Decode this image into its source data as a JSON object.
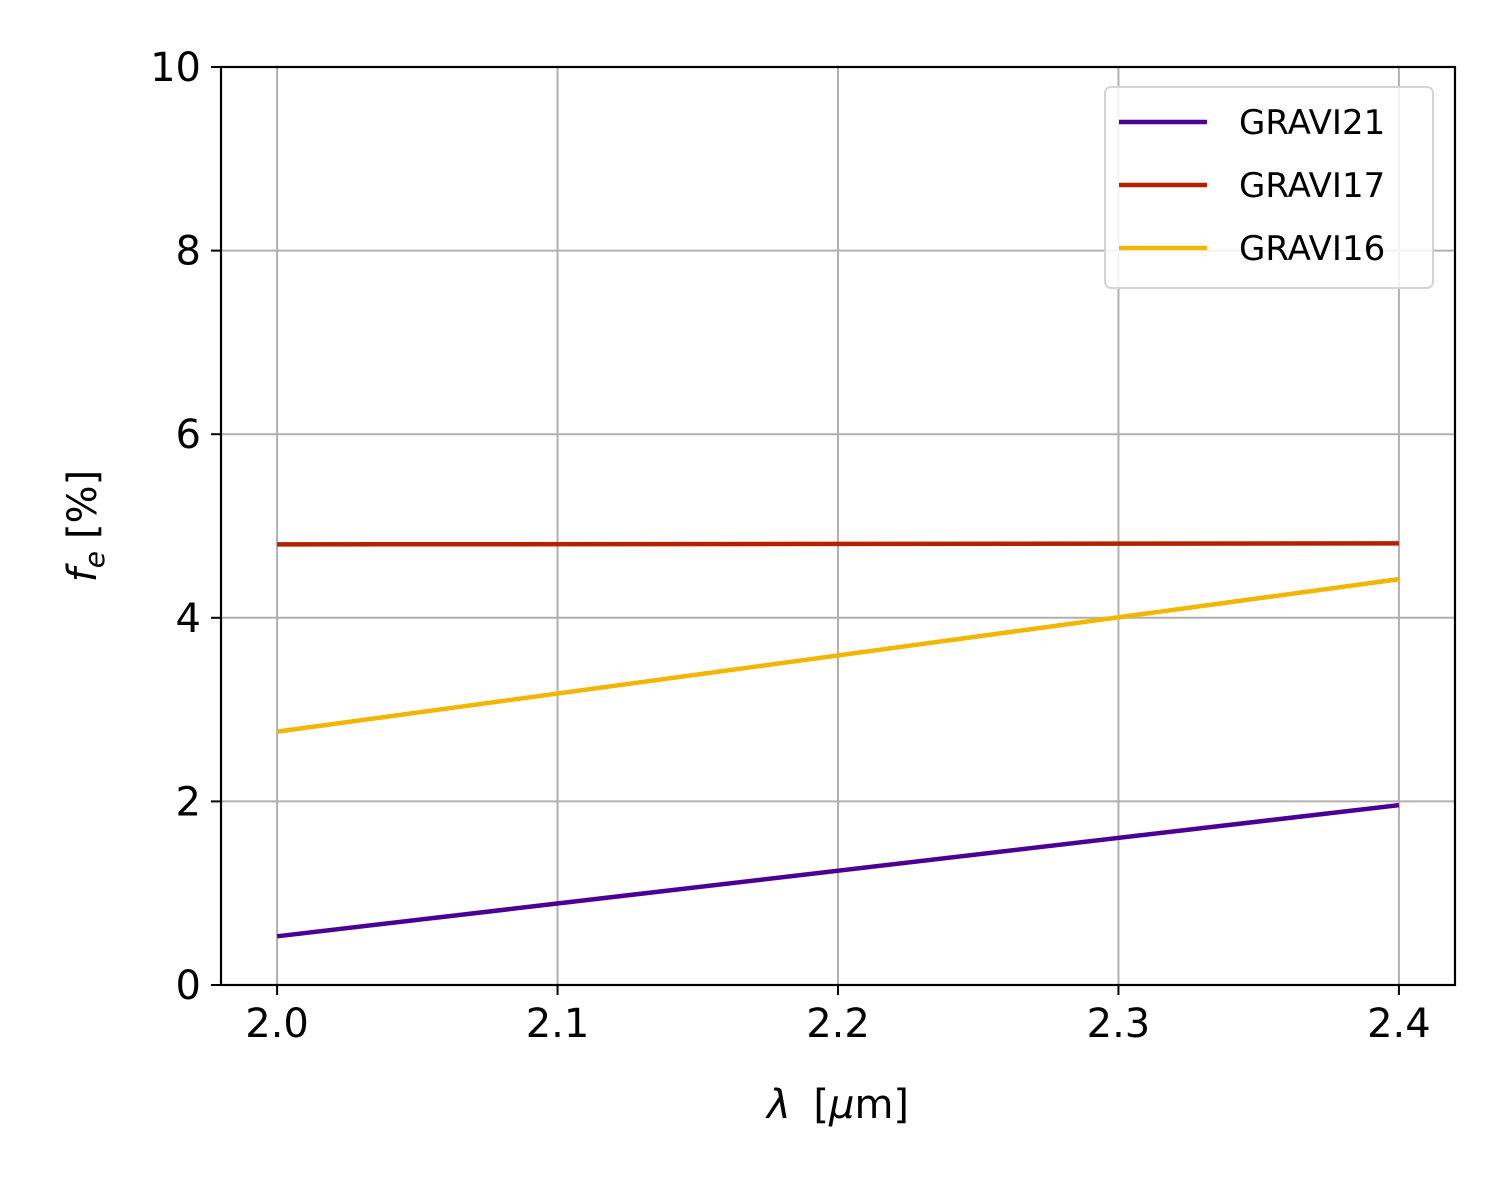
{
  "chart_data": {
    "type": "line",
    "title": "",
    "xlabel_symbol": "λ",
    "xlabel_unit_prefix": "[",
    "xlabel_unit_mu": "μ",
    "xlabel_unit_rest": "m]",
    "ylabel_symbol": "f",
    "ylabel_subscript": "e",
    "ylabel_unit": "[%]",
    "xlim": [
      1.98,
      2.42
    ],
    "ylim": [
      0,
      10
    ],
    "xticks": [
      2.0,
      2.1,
      2.2,
      2.3,
      2.4
    ],
    "xtick_labels": [
      "2.0",
      "2.1",
      "2.2",
      "2.3",
      "2.4"
    ],
    "yticks": [
      0,
      2,
      4,
      6,
      8,
      10
    ],
    "ytick_labels": [
      "0",
      "2",
      "4",
      "6",
      "8",
      "10"
    ],
    "grid": true,
    "legend_position": "top-right",
    "series": [
      {
        "name": "GRAVI21",
        "color": "#4b0095",
        "x": [
          2.0,
          2.4
        ],
        "y": [
          0.53,
          1.96
        ]
      },
      {
        "name": "GRAVI17",
        "color": "#b52000",
        "x": [
          2.0,
          2.4
        ],
        "y": [
          4.8,
          4.81
        ]
      },
      {
        "name": "GRAVI16",
        "color": "#f2b500",
        "x": [
          2.0,
          2.4
        ],
        "y": [
          2.76,
          4.42
        ]
      }
    ]
  }
}
